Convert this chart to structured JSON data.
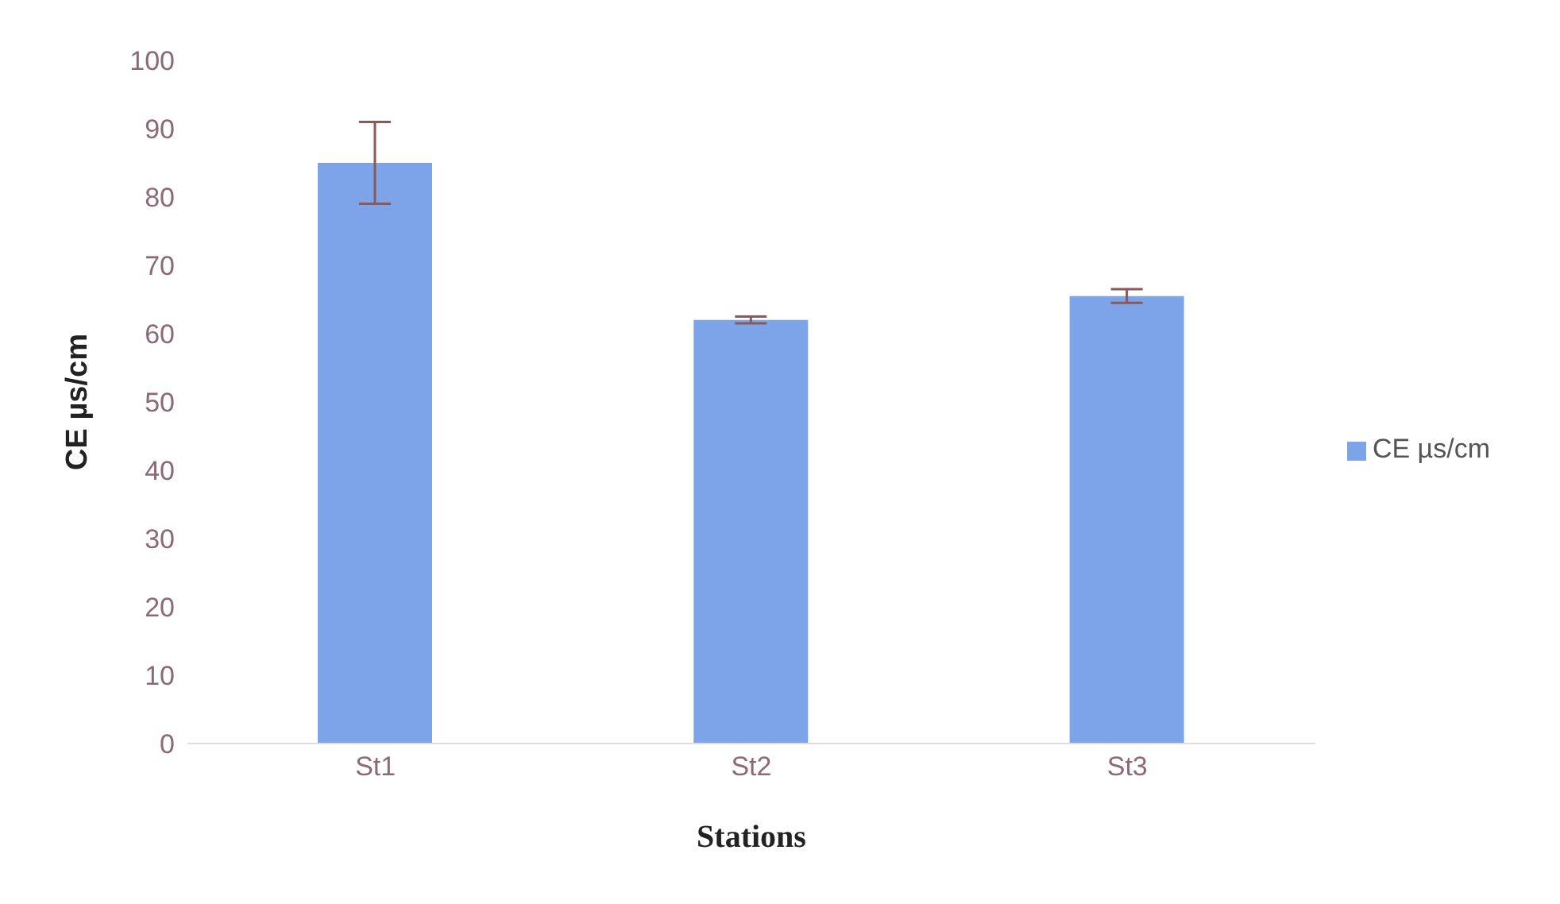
{
  "chart_data": {
    "type": "bar",
    "xlabel": "Stations",
    "ylabel": "CE µs/cm",
    "categories": [
      "St1",
      "St2",
      "St3"
    ],
    "series": [
      {
        "name": "CE µs/cm",
        "color": "#7da4e8",
        "values": [
          85,
          62,
          65.5
        ],
        "errors": [
          6,
          0.5,
          1
        ]
      }
    ],
    "ylim": [
      0,
      100
    ],
    "yticks": [
      0,
      10,
      20,
      30,
      40,
      50,
      60,
      70,
      80,
      90,
      100
    ],
    "legend": "right"
  }
}
